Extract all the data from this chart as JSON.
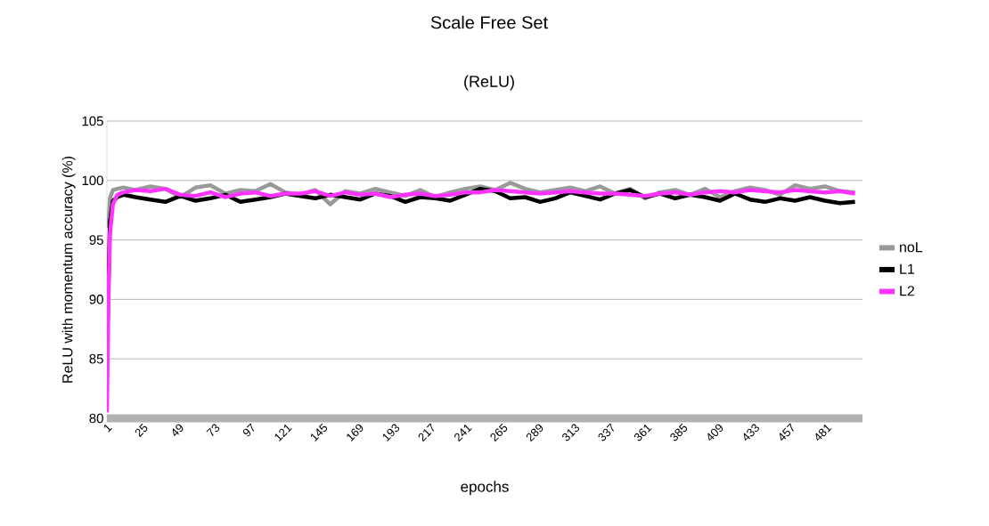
{
  "chart_data": {
    "type": "line",
    "title": "Scale Free Set",
    "subtitle": "(ReLU)",
    "xlabel": "epochs",
    "ylabel": "ReLU with momentum accuracy (%)",
    "x": [
      1,
      2,
      3,
      5,
      8,
      12,
      20,
      30,
      40,
      50,
      60,
      70,
      80,
      90,
      100,
      110,
      120,
      130,
      140,
      150,
      160,
      170,
      180,
      190,
      200,
      210,
      220,
      230,
      240,
      250,
      260,
      270,
      280,
      290,
      300,
      310,
      320,
      330,
      340,
      350,
      360,
      370,
      380,
      390,
      400,
      410,
      420,
      430,
      440,
      450,
      460,
      470,
      480,
      490,
      500
    ],
    "xlim": [
      1,
      505
    ],
    "xticks": [
      1,
      25,
      49,
      73,
      97,
      121,
      145,
      169,
      193,
      217,
      241,
      265,
      289,
      313,
      337,
      361,
      385,
      409,
      433,
      457,
      481
    ],
    "ylim": [
      80,
      105
    ],
    "yticks": [
      80,
      85,
      90,
      95,
      100,
      105
    ],
    "grid": "y",
    "legend": "right",
    "series": [
      {
        "name": "noL",
        "color": "#999999",
        "values": [
          null,
          96,
          98.5,
          99.2,
          99.3,
          99.4,
          99.2,
          99.5,
          99.3,
          98.6,
          99.4,
          99.6,
          98.9,
          99.2,
          99.1,
          99.7,
          99.0,
          98.8,
          99.2,
          98.0,
          99.1,
          98.9,
          99.3,
          99.0,
          98.7,
          99.2,
          98.6,
          99.0,
          99.3,
          99.5,
          99.2,
          99.8,
          99.3,
          99.0,
          99.2,
          99.4,
          99.1,
          99.5,
          98.9,
          99.3,
          98.5,
          99.0,
          99.2,
          98.8,
          99.3,
          98.6,
          99.1,
          99.4,
          99.2,
          98.8,
          99.6,
          99.3,
          99.5,
          99.1,
          99.0
        ]
      },
      {
        "name": "L1",
        "color": "#000000",
        "values": [
          85.5,
          null,
          96.5,
          98.3,
          98.6,
          98.8,
          98.6,
          98.4,
          98.2,
          98.7,
          98.3,
          98.5,
          98.8,
          98.2,
          98.4,
          98.6,
          98.9,
          98.7,
          98.5,
          98.8,
          98.6,
          98.4,
          98.9,
          98.7,
          98.2,
          98.6,
          98.5,
          98.3,
          98.8,
          99.3,
          99.1,
          98.5,
          98.6,
          98.2,
          98.5,
          99.0,
          98.7,
          98.4,
          98.9,
          99.2,
          98.6,
          98.9,
          98.5,
          98.8,
          98.6,
          98.3,
          98.9,
          98.4,
          98.2,
          98.5,
          98.3,
          98.6,
          98.3,
          98.1,
          98.2
        ]
      },
      {
        "name": "L2",
        "color": "#ff33ff",
        "values": [
          80.5,
          90,
          95.5,
          98,
          98.8,
          99.0,
          99.2,
          99.1,
          99.3,
          98.8,
          98.7,
          99.0,
          98.6,
          98.9,
          99.0,
          98.7,
          98.9,
          98.9,
          99.1,
          98.7,
          99.0,
          98.8,
          98.9,
          98.6,
          98.8,
          98.9,
          98.7,
          98.8,
          99.0,
          99.0,
          99.2,
          99.1,
          99.0,
          98.9,
          99.0,
          99.1,
          99.0,
          98.9,
          98.9,
          98.8,
          98.7,
          98.9,
          99.0,
          98.8,
          99.0,
          99.1,
          99.0,
          99.2,
          99.1,
          99.0,
          99.2,
          99.1,
          99.0,
          99.1,
          98.9
        ]
      }
    ]
  }
}
